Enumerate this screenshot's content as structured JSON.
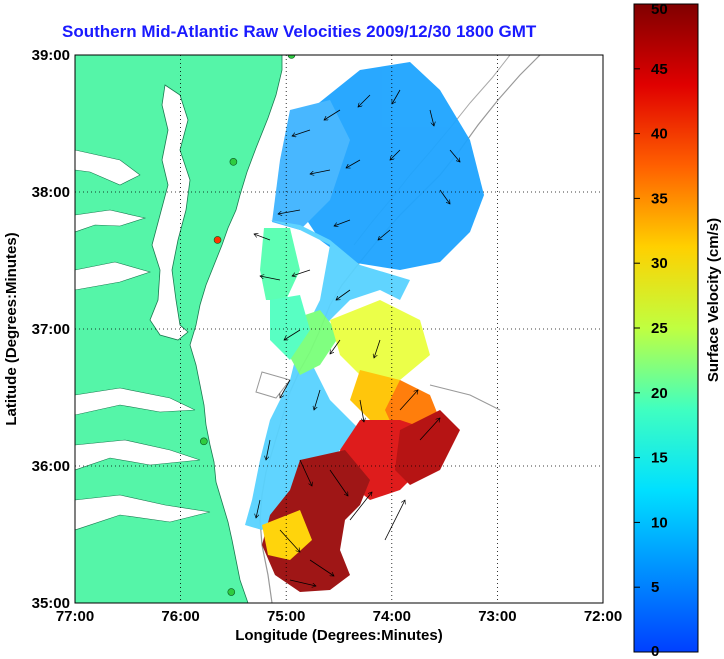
{
  "title": "Southern Mid-Atlantic Raw Velocities 2009/12/30 1800 GMT",
  "map": {
    "xlabel": "Longitude (Degrees:Minutes)",
    "ylabel": "Latitude (Degrees:Minutes)",
    "x_ticks": [
      "77:00",
      "76:00",
      "75:00",
      "74:00",
      "73:00",
      "72:00"
    ],
    "y_ticks": [
      "39:00",
      "38:00",
      "37:00",
      "36:00",
      "35:00"
    ],
    "lon_range": [
      -77,
      -72
    ],
    "lat_range": [
      35,
      39
    ],
    "land_color": "#55f5a8",
    "stations": [
      {
        "lon": -74.95,
        "lat": 39.0,
        "color": "#2ecc40"
      },
      {
        "lon": -75.5,
        "lat": 38.22,
        "color": "#2ecc40"
      },
      {
        "lon": -75.65,
        "lat": 37.65,
        "color": "#ff3300"
      },
      {
        "lon": -75.78,
        "lat": 36.18,
        "color": "#2ecc40"
      },
      {
        "lon": -75.52,
        "lat": 35.08,
        "color": "#2ecc40"
      }
    ]
  },
  "colorbar": {
    "label": "Surface Velocity (cm/s)",
    "ticks": [
      "50",
      "45",
      "40",
      "35",
      "30",
      "25",
      "20",
      "15",
      "10",
      "5",
      "0"
    ],
    "range": [
      0,
      50
    ],
    "colormap": "jet"
  }
}
